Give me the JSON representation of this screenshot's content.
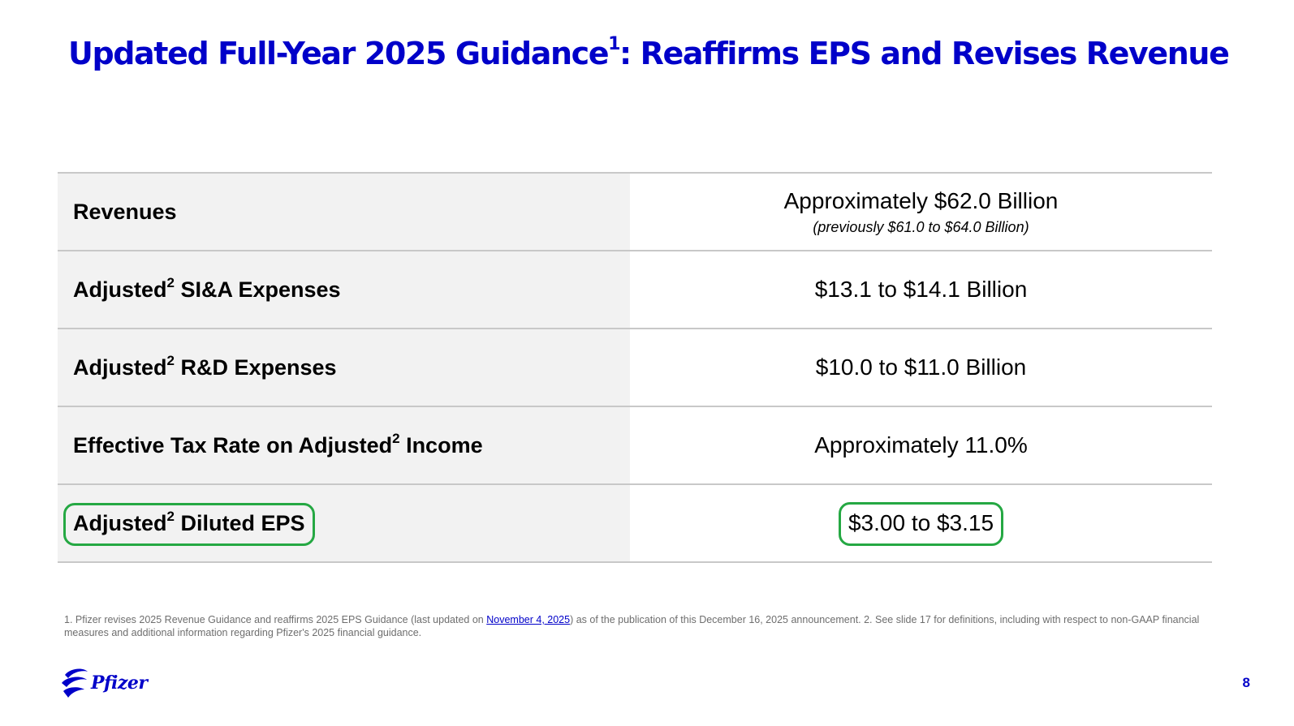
{
  "title": {
    "main": "Updated Full-Year 2025 Guidance",
    "sup": "1",
    "rest": ": Reaffirms EPS and Revises Revenue"
  },
  "rows": [
    {
      "label_pre": "Revenues",
      "label_sup": "",
      "label_post": "",
      "value": "Approximately $62.0 Billion",
      "subvalue": "(previously $61.0 to $64.0 Billion)"
    },
    {
      "label_pre": "Adjusted",
      "label_sup": "2",
      "label_post": " SI&A Expenses",
      "value": "$13.1 to $14.1 Billion",
      "subvalue": ""
    },
    {
      "label_pre": "Adjusted",
      "label_sup": "2",
      "label_post": " R&D Expenses",
      "value": "$10.0 to $11.0 Billion",
      "subvalue": ""
    },
    {
      "label_pre": "Effective Tax Rate on Adjusted",
      "label_sup": "2",
      "label_post": " Income",
      "value": "Approximately 11.0%",
      "subvalue": ""
    },
    {
      "label_pre": "Adjusted",
      "label_sup": "2",
      "label_post": " Diluted EPS",
      "value": "$3.00 to $3.15",
      "subvalue": ""
    }
  ],
  "footnote": {
    "part1": "1. Pfizer revises 2025 Revenue Guidance and reaffirms 2025 EPS Guidance (last updated on ",
    "link": "November 4, 2025",
    "part2": ") as of the publication of this December 16, 2025 announcement. 2. See slide 17  for definitions, including with respect to non-GAAP financial measures and additional information regarding Pfizer's 2025 financial guidance."
  },
  "logo": {
    "text": "Pfizer",
    "icon": "pfizer-logo-icon"
  },
  "page_number": "8",
  "colors": {
    "brand_blue": "#0000c9",
    "highlight_green": "#25a843",
    "label_bg": "#f2f2f2",
    "divider": "#c8c8c8"
  }
}
